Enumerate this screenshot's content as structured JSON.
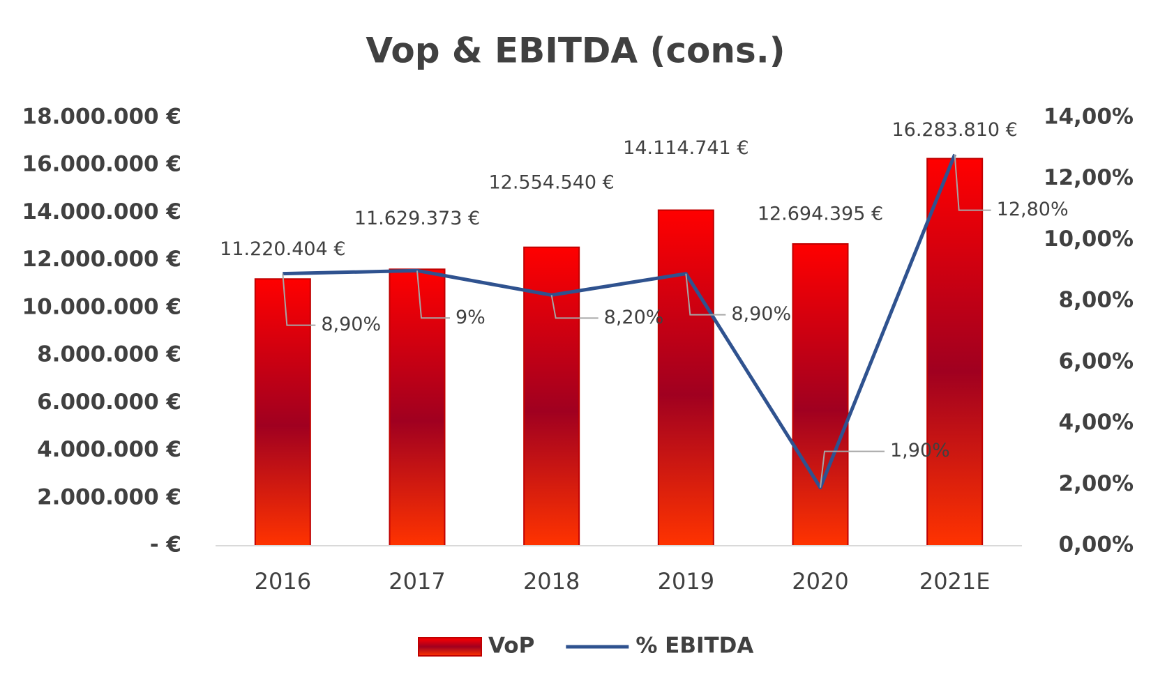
{
  "chart_data": {
    "type": "bar",
    "title": "Vop & EBITDA (cons.)",
    "categories": [
      "2016",
      "2017",
      "2018",
      "2019",
      "2020",
      "2021E"
    ],
    "series": [
      {
        "name": "VoP",
        "type": "bar",
        "color": "#c00000",
        "values": [
          11220404,
          11629373,
          12554540,
          14114741,
          12694395,
          16283810
        ],
        "value_labels": [
          "11.220.404 €",
          "11.629.373 €",
          "12.554.540 €",
          "14.114.741 €",
          "12.694.395 €",
          "16.283.810 €"
        ]
      },
      {
        "name": "% EBITDA",
        "type": "line",
        "axis": "y2",
        "color": "#2f528f",
        "values": [
          8.9,
          9,
          8.2,
          8.9,
          1.9,
          12.8
        ],
        "value_labels": [
          "8,90%",
          "9%",
          "8,20%",
          "8,90%",
          "1,90%",
          "12,80%"
        ]
      }
    ],
    "ylim": [
      0,
      18000000
    ],
    "yticks": [
      {
        "value": 0,
        "label": "-   €"
      },
      {
        "value": 2000000,
        "label": "2.000.000 €"
      },
      {
        "value": 4000000,
        "label": "4.000.000 €"
      },
      {
        "value": 6000000,
        "label": "6.000.000 €"
      },
      {
        "value": 8000000,
        "label": "8.000.000 €"
      },
      {
        "value": 10000000,
        "label": "10.000.000 €"
      },
      {
        "value": 12000000,
        "label": "12.000.000 €"
      },
      {
        "value": 14000000,
        "label": "14.000.000 €"
      },
      {
        "value": 16000000,
        "label": "16.000.000 €"
      },
      {
        "value": 18000000,
        "label": "18.000.000 €"
      }
    ],
    "y2lim": [
      0,
      14
    ],
    "y2ticks": [
      {
        "value": 0,
        "label": "0,00%"
      },
      {
        "value": 2,
        "label": "2,00%"
      },
      {
        "value": 4,
        "label": "4,00%"
      },
      {
        "value": 6,
        "label": "6,00%"
      },
      {
        "value": 8,
        "label": "8,00%"
      },
      {
        "value": 10,
        "label": "10,00%"
      },
      {
        "value": 12,
        "label": "12,00%"
      },
      {
        "value": 14,
        "label": "14,00%"
      }
    ],
    "grid": false,
    "legend": "bottom"
  }
}
